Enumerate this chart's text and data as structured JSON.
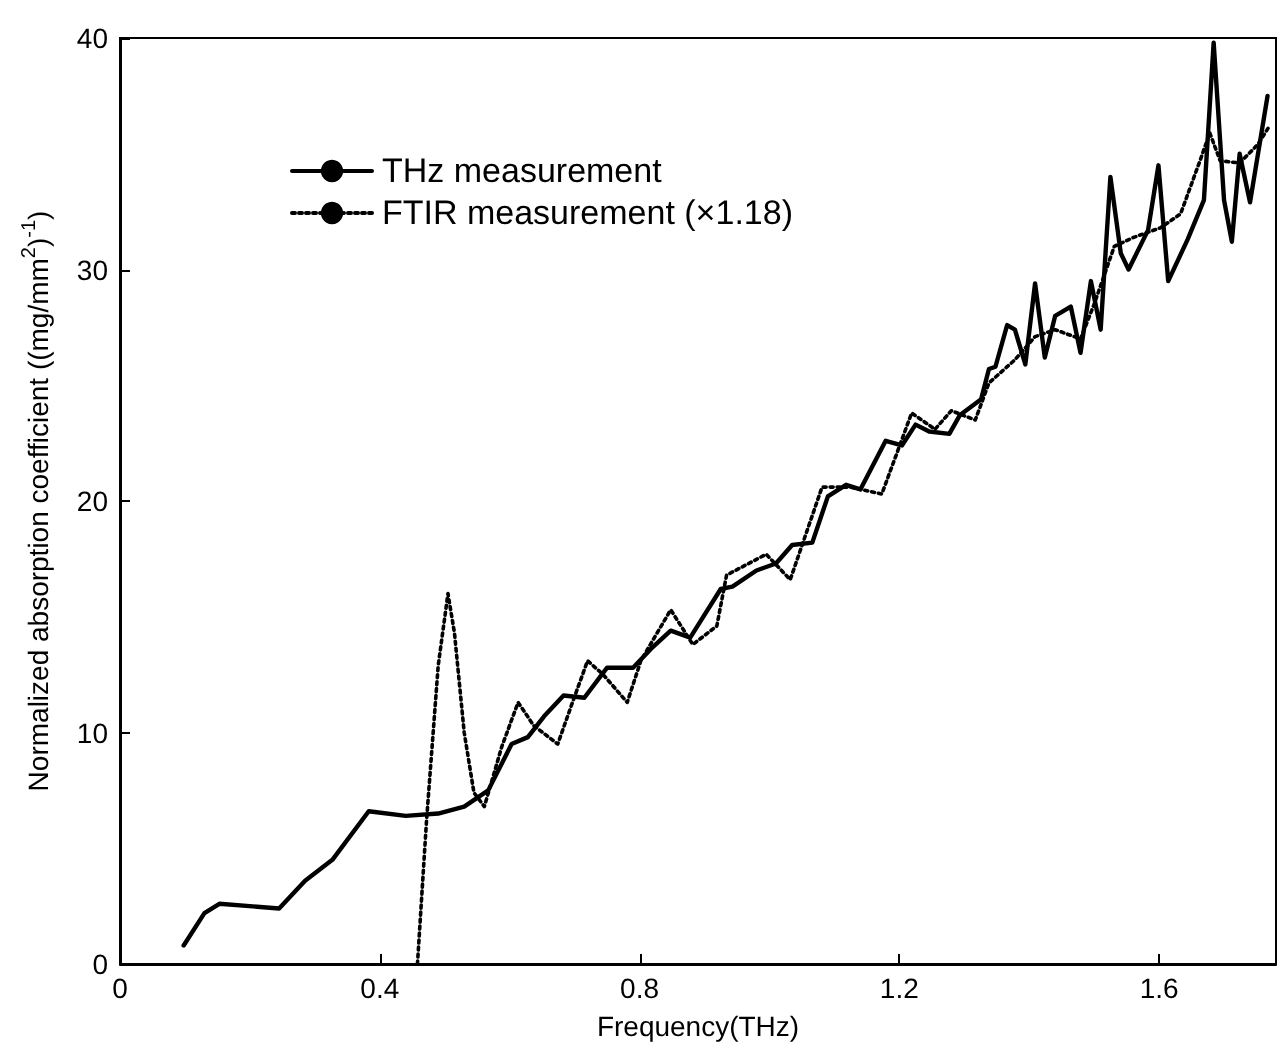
{
  "chart_data": {
    "type": "line",
    "xlabel": "Frequency(THz)",
    "ylabel": "Normalized absorption coefficient ((mg/mm$^{2}$)$^{-1}$)",
    "xlim": [
      0,
      1.78
    ],
    "xticks": [
      0,
      0.4,
      0.8,
      1.2,
      1.6
    ],
    "ylim": [
      0,
      40
    ],
    "yticks": [
      0,
      10,
      20,
      30,
      40
    ],
    "grid": false,
    "legend": "top left",
    "marker": "none",
    "series": [
      {
        "name": "THz measurement",
        "color": "#000000",
        "line_style": "solid",
        "x": [
          0.098,
          0.13,
          0.153,
          0.245,
          0.285,
          0.327,
          0.383,
          0.44,
          0.49,
          0.53,
          0.567,
          0.603,
          0.628,
          0.653,
          0.683,
          0.715,
          0.75,
          0.79,
          0.817,
          0.848,
          0.878,
          0.925,
          0.943,
          0.98,
          1.01,
          1.035,
          1.066,
          1.09,
          1.118,
          1.14,
          1.179,
          1.204,
          1.225,
          1.246,
          1.277,
          1.293,
          1.326,
          1.338,
          1.348,
          1.366,
          1.378,
          1.394,
          1.409,
          1.424,
          1.44,
          1.464,
          1.479,
          1.495,
          1.51,
          1.525,
          1.541,
          1.553,
          1.583,
          1.599,
          1.614,
          1.644,
          1.669,
          1.684,
          1.7,
          1.712,
          1.724,
          1.74,
          1.767
        ],
        "values": [
          0.8,
          2.2,
          2.6,
          2.4,
          3.6,
          4.5,
          6.6,
          6.4,
          6.5,
          6.8,
          7.5,
          9.5,
          9.8,
          10.7,
          11.6,
          11.5,
          12.8,
          12.8,
          13.6,
          14.4,
          14.1,
          16.2,
          16.3,
          17.0,
          17.3,
          18.1,
          18.2,
          20.2,
          20.7,
          20.5,
          22.6,
          22.4,
          23.3,
          23.0,
          22.9,
          23.7,
          24.4,
          25.7,
          25.8,
          27.6,
          27.4,
          25.9,
          29.4,
          26.2,
          28.0,
          28.4,
          26.4,
          29.5,
          27.4,
          34.0,
          30.7,
          30.0,
          31.7,
          34.5,
          29.5,
          31.3,
          33.0,
          39.8,
          33.0,
          31.2,
          35.0,
          32.9,
          37.5
        ]
      },
      {
        "name": "FTIR measurement (×1.18)",
        "color": "#000000",
        "line_style": "dotted",
        "x": [
          0.458,
          0.472,
          0.49,
          0.505,
          0.515,
          0.53,
          0.545,
          0.561,
          0.588,
          0.613,
          0.637,
          0.674,
          0.698,
          0.72,
          0.744,
          0.781,
          0.802,
          0.848,
          0.882,
          0.919,
          0.934,
          0.995,
          1.032,
          1.081,
          1.124,
          1.173,
          1.219,
          1.255,
          1.28,
          1.317,
          1.338,
          1.378,
          1.409,
          1.44,
          1.479,
          1.5,
          1.531,
          1.562,
          1.602,
          1.633,
          1.663,
          1.678,
          1.694,
          1.724,
          1.752,
          1.77
        ],
        "values": [
          0,
          6.2,
          12.9,
          16.0,
          14.3,
          10.0,
          7.4,
          6.8,
          9.4,
          11.3,
          10.3,
          9.5,
          11.4,
          13.1,
          12.5,
          11.3,
          13.1,
          15.3,
          13.8,
          14.6,
          16.8,
          17.7,
          16.6,
          20.6,
          20.6,
          20.3,
          23.8,
          23.1,
          23.9,
          23.5,
          25.1,
          26.1,
          27.1,
          27.4,
          27.0,
          28.5,
          31.0,
          31.4,
          31.8,
          32.4,
          34.7,
          35.9,
          34.7,
          34.6,
          35.4,
          36.2
        ]
      }
    ]
  }
}
